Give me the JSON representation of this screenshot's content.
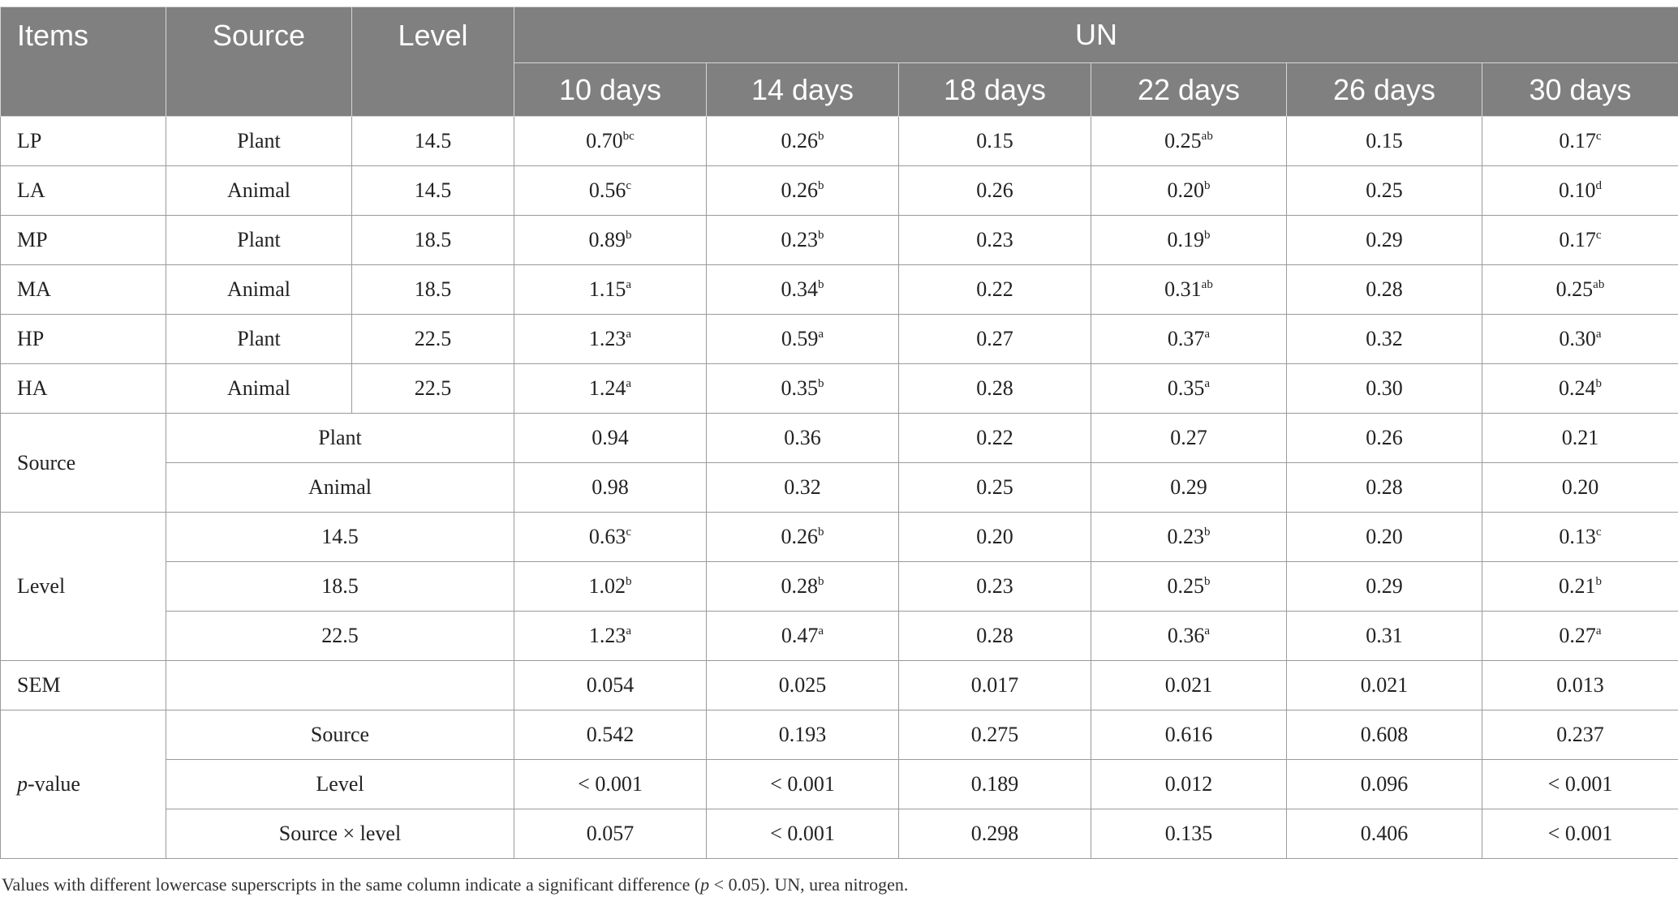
{
  "header": {
    "items": "Items",
    "source": "Source",
    "level": "Level",
    "group": "UN",
    "days": [
      "10 days",
      "14 days",
      "18 days",
      "22 days",
      "26 days",
      "30 days"
    ]
  },
  "diet_rows": [
    {
      "item": "LP",
      "source": "Plant",
      "level": "14.5",
      "values": [
        [
          "0.70",
          "bc"
        ],
        [
          "0.26",
          "b"
        ],
        [
          "0.15",
          ""
        ],
        [
          "0.25",
          "ab"
        ],
        [
          "0.15",
          ""
        ],
        [
          "0.17",
          "c"
        ]
      ]
    },
    {
      "item": "LA",
      "source": "Animal",
      "level": "14.5",
      "values": [
        [
          "0.56",
          "c"
        ],
        [
          "0.26",
          "b"
        ],
        [
          "0.26",
          ""
        ],
        [
          "0.20",
          "b"
        ],
        [
          "0.25",
          ""
        ],
        [
          "0.10",
          "d"
        ]
      ]
    },
    {
      "item": "MP",
      "source": "Plant",
      "level": "18.5",
      "values": [
        [
          "0.89",
          "b"
        ],
        [
          "0.23",
          "b"
        ],
        [
          "0.23",
          ""
        ],
        [
          "0.19",
          "b"
        ],
        [
          "0.29",
          ""
        ],
        [
          "0.17",
          "c"
        ]
      ]
    },
    {
      "item": "MA",
      "source": "Animal",
      "level": "18.5",
      "values": [
        [
          "1.15",
          "a"
        ],
        [
          "0.34",
          "b"
        ],
        [
          "0.22",
          ""
        ],
        [
          "0.31",
          "ab"
        ],
        [
          "0.28",
          ""
        ],
        [
          "0.25",
          "ab"
        ]
      ]
    },
    {
      "item": "HP",
      "source": "Plant",
      "level": "22.5",
      "values": [
        [
          "1.23",
          "a"
        ],
        [
          "0.59",
          "a"
        ],
        [
          "0.27",
          ""
        ],
        [
          "0.37",
          "a"
        ],
        [
          "0.32",
          ""
        ],
        [
          "0.30",
          "a"
        ]
      ]
    },
    {
      "item": "HA",
      "source": "Animal",
      "level": "22.5",
      "values": [
        [
          "1.24",
          "a"
        ],
        [
          "0.35",
          "b"
        ],
        [
          "0.28",
          ""
        ],
        [
          "0.35",
          "a"
        ],
        [
          "0.30",
          ""
        ],
        [
          "0.24",
          "b"
        ]
      ]
    }
  ],
  "source_group": {
    "label": "Source",
    "rows": [
      {
        "label": "Plant",
        "values": [
          [
            "0.94",
            ""
          ],
          [
            "0.36",
            ""
          ],
          [
            "0.22",
            ""
          ],
          [
            "0.27",
            ""
          ],
          [
            "0.26",
            ""
          ],
          [
            "0.21",
            ""
          ]
        ]
      },
      {
        "label": "Animal",
        "values": [
          [
            "0.98",
            ""
          ],
          [
            "0.32",
            ""
          ],
          [
            "0.25",
            ""
          ],
          [
            "0.29",
            ""
          ],
          [
            "0.28",
            ""
          ],
          [
            "0.20",
            ""
          ]
        ]
      }
    ]
  },
  "level_group": {
    "label": "Level",
    "rows": [
      {
        "label": "14.5",
        "values": [
          [
            "0.63",
            "c"
          ],
          [
            "0.26",
            "b"
          ],
          [
            "0.20",
            ""
          ],
          [
            "0.23",
            "b"
          ],
          [
            "0.20",
            ""
          ],
          [
            "0.13",
            "c"
          ]
        ]
      },
      {
        "label": "18.5",
        "values": [
          [
            "1.02",
            "b"
          ],
          [
            "0.28",
            "b"
          ],
          [
            "0.23",
            ""
          ],
          [
            "0.25",
            "b"
          ],
          [
            "0.29",
            ""
          ],
          [
            "0.21",
            "b"
          ]
        ]
      },
      {
        "label": "22.5",
        "values": [
          [
            "1.23",
            "a"
          ],
          [
            "0.47",
            "a"
          ],
          [
            "0.28",
            ""
          ],
          [
            "0.36",
            "a"
          ],
          [
            "0.31",
            ""
          ],
          [
            "0.27",
            "a"
          ]
        ]
      }
    ]
  },
  "sem": {
    "label": "SEM",
    "values": [
      [
        "0.054",
        ""
      ],
      [
        "0.025",
        ""
      ],
      [
        "0.017",
        ""
      ],
      [
        "0.021",
        ""
      ],
      [
        "0.021",
        ""
      ],
      [
        "0.013",
        ""
      ]
    ]
  },
  "pvalue_group": {
    "label_italic": "p",
    "label_rest": "-value",
    "rows": [
      {
        "label": "Source",
        "values": [
          [
            "0.542",
            ""
          ],
          [
            "0.193",
            ""
          ],
          [
            "0.275",
            ""
          ],
          [
            "0.616",
            ""
          ],
          [
            "0.608",
            ""
          ],
          [
            "0.237",
            ""
          ]
        ]
      },
      {
        "label": "Level",
        "values": [
          [
            "< 0.001",
            ""
          ],
          [
            "< 0.001",
            ""
          ],
          [
            "0.189",
            ""
          ],
          [
            "0.012",
            ""
          ],
          [
            "0.096",
            ""
          ],
          [
            "< 0.001",
            ""
          ]
        ]
      },
      {
        "label": "Source × level",
        "values": [
          [
            "0.057",
            ""
          ],
          [
            "< 0.001",
            ""
          ],
          [
            "0.298",
            ""
          ],
          [
            "0.135",
            ""
          ],
          [
            "0.406",
            ""
          ],
          [
            "< 0.001",
            ""
          ]
        ]
      }
    ]
  },
  "footnote": {
    "part1": "Values with different lowercase superscripts in the same column indicate a significant difference (",
    "p": "p",
    "part2": " < 0.05). UN, urea nitrogen."
  }
}
